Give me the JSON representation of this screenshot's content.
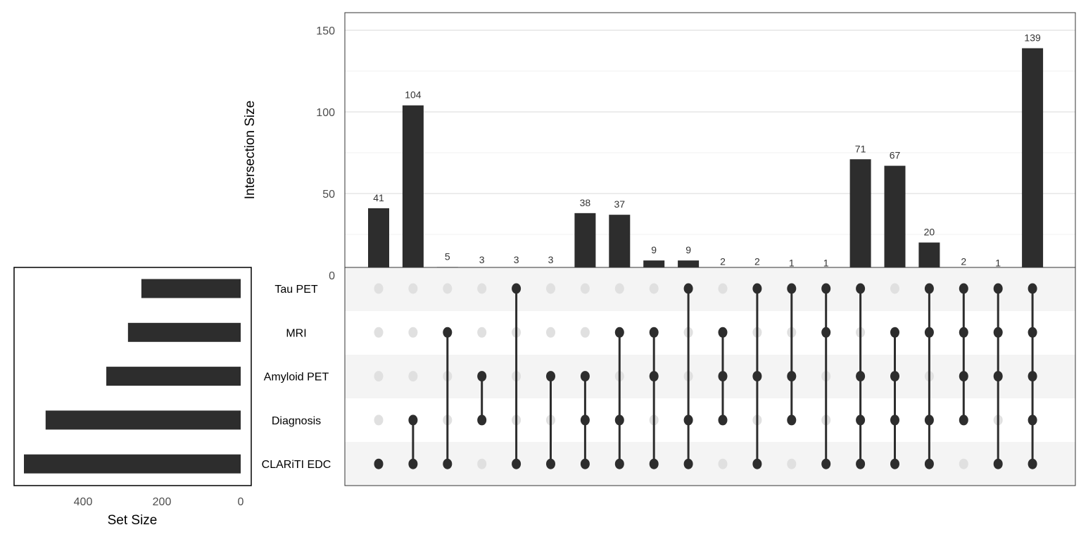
{
  "chart_data": {
    "type": "upset",
    "intersections": {
      "ylabel": "Intersection Size",
      "ylim": [
        0,
        160
      ],
      "yticks": [
        0,
        50,
        100,
        150
      ],
      "grid": true,
      "values": [
        41,
        104,
        5,
        3,
        3,
        3,
        38,
        37,
        9,
        9,
        2,
        2,
        1,
        1,
        71,
        67,
        20,
        2,
        1,
        139
      ],
      "labels": [
        "41",
        "104",
        "5",
        "3",
        "3",
        "3",
        "38",
        "37",
        "9",
        "9",
        "2",
        "2",
        "1",
        "1",
        "71",
        "67",
        "20",
        "2",
        "1",
        "139"
      ]
    },
    "sets": {
      "names": [
        "Tau PET",
        "MRI",
        "Amyloid PET",
        "Diagnosis",
        "CLARiTI EDC"
      ],
      "sizes": [
        252,
        286,
        341,
        495,
        550
      ],
      "xlabel": "Set Size",
      "xticks": [
        400,
        200,
        0
      ],
      "xlim": [
        0,
        600
      ]
    },
    "membership": [
      [
        "CLARiTI EDC"
      ],
      [
        "Diagnosis",
        "CLARiTI EDC"
      ],
      [
        "MRI",
        "CLARiTI EDC"
      ],
      [
        "Amyloid PET",
        "Diagnosis"
      ],
      [
        "Tau PET",
        "CLARiTI EDC"
      ],
      [
        "Amyloid PET",
        "CLARiTI EDC"
      ],
      [
        "Amyloid PET",
        "Diagnosis",
        "CLARiTI EDC"
      ],
      [
        "MRI",
        "Diagnosis",
        "CLARiTI EDC"
      ],
      [
        "MRI",
        "Amyloid PET",
        "CLARiTI EDC"
      ],
      [
        "Tau PET",
        "Diagnosis",
        "CLARiTI EDC"
      ],
      [
        "MRI",
        "Amyloid PET",
        "Diagnosis"
      ],
      [
        "Tau PET",
        "Amyloid PET",
        "CLARiTI EDC"
      ],
      [
        "Tau PET",
        "Amyloid PET",
        "Diagnosis"
      ],
      [
        "Tau PET",
        "MRI",
        "CLARiTI EDC"
      ],
      [
        "Tau PET",
        "Amyloid PET",
        "Diagnosis",
        "CLARiTI EDC"
      ],
      [
        "MRI",
        "Amyloid PET",
        "Diagnosis",
        "CLARiTI EDC"
      ],
      [
        "Tau PET",
        "MRI",
        "Diagnosis",
        "CLARiTI EDC"
      ],
      [
        "Tau PET",
        "MRI",
        "Amyloid PET",
        "Diagnosis"
      ],
      [
        "Tau PET",
        "MRI",
        "Amyloid PET",
        "CLARiTI EDC"
      ],
      [
        "Tau PET",
        "MRI",
        "Amyloid PET",
        "Diagnosis",
        "CLARiTI EDC"
      ]
    ],
    "colors": {
      "bar": "#2d2d2d",
      "dot_off": "#e0e0e0",
      "stripe": "#f4f4f4",
      "grid": "#e6e6e6"
    }
  }
}
